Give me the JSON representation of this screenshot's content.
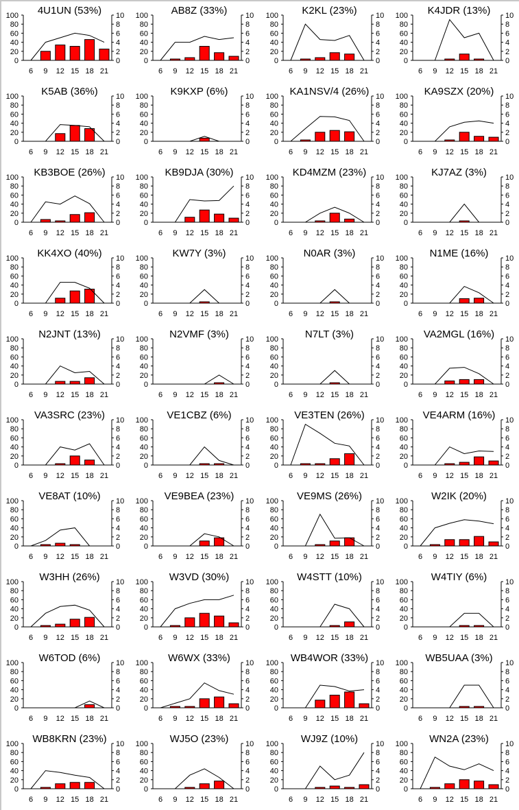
{
  "shared": {
    "x": [
      6,
      9,
      12,
      15,
      18,
      21
    ],
    "left_ticks": [
      0,
      20,
      40,
      60,
      80,
      100
    ],
    "right_ticks": [
      0,
      2,
      4,
      6,
      8,
      10
    ],
    "left_ylim": [
      0,
      100
    ],
    "right_ylim": [
      0,
      10
    ],
    "bar_color": "#ff0000",
    "line_color": "#000000"
  },
  "chart_data": [
    {
      "type": "bar+line",
      "title": "4U1UN (53%)",
      "line": [
        0,
        40,
        50,
        60,
        55,
        40
      ],
      "bars": [
        0,
        20,
        34,
        31,
        46,
        25
      ]
    },
    {
      "type": "bar+line",
      "title": "AB8Z (33%)",
      "line": [
        0,
        40,
        40,
        53,
        46,
        50
      ],
      "bars": [
        0,
        3,
        6,
        31,
        17,
        9
      ]
    },
    {
      "type": "bar+line",
      "title": "K2KL (23%)",
      "line": [
        0,
        80,
        46,
        44,
        55,
        0
      ],
      "bars": [
        0,
        3,
        6,
        17,
        14,
        0
      ]
    },
    {
      "type": "bar+line",
      "title": "K4JDR (13%)",
      "line": [
        0,
        0,
        90,
        50,
        60,
        0
      ],
      "bars": [
        0,
        0,
        3,
        14,
        3,
        0
      ]
    },
    {
      "type": "bar+line",
      "title": "K5AB (36%)",
      "line": [
        0,
        0,
        37,
        35,
        32,
        0
      ],
      "bars": [
        0,
        0,
        17,
        35,
        28,
        0
      ]
    },
    {
      "type": "bar+line",
      "title": "K9KXP (6%)",
      "line": [
        0,
        0,
        0,
        11,
        0,
        0
      ],
      "bars": [
        0,
        0,
        0,
        7,
        0,
        0
      ]
    },
    {
      "type": "bar+line",
      "title": "KA1NSV/4 (26%)",
      "line": [
        0,
        28,
        55,
        54,
        46,
        0
      ],
      "bars": [
        0,
        3,
        20,
        24,
        21,
        0
      ]
    },
    {
      "type": "bar+line",
      "title": "KA9SZX (20%)",
      "line": [
        0,
        0,
        32,
        42,
        45,
        40
      ],
      "bars": [
        0,
        0,
        3,
        20,
        11,
        9
      ]
    },
    {
      "type": "bar+line",
      "title": "KB3BOE (26%)",
      "line": [
        0,
        45,
        40,
        58,
        41,
        0
      ],
      "bars": [
        0,
        6,
        3,
        17,
        21,
        0
      ]
    },
    {
      "type": "bar+line",
      "title": "KB9DJA (30%)",
      "line": [
        0,
        0,
        50,
        47,
        48,
        80
      ],
      "bars": [
        0,
        0,
        11,
        27,
        18,
        9
      ]
    },
    {
      "type": "bar+line",
      "title": "KD4MZM (23%)",
      "line": [
        0,
        0,
        20,
        33,
        20,
        0
      ],
      "bars": [
        0,
        0,
        3,
        20,
        7,
        0
      ]
    },
    {
      "type": "bar+line",
      "title": "KJ7AZ (3%)",
      "line": [
        0,
        0,
        0,
        40,
        0,
        0
      ],
      "bars": [
        0,
        0,
        0,
        3,
        0,
        0
      ]
    },
    {
      "type": "bar+line",
      "title": "KK4XO (40%)",
      "line": [
        0,
        0,
        46,
        46,
        33,
        0
      ],
      "bars": [
        0,
        0,
        11,
        27,
        31,
        0
      ]
    },
    {
      "type": "bar+line",
      "title": "KW7Y (3%)",
      "line": [
        0,
        0,
        0,
        30,
        0,
        0
      ],
      "bars": [
        0,
        0,
        0,
        3,
        0,
        0
      ]
    },
    {
      "type": "bar+line",
      "title": "N0AR (3%)",
      "line": [
        0,
        0,
        0,
        30,
        0,
        0
      ],
      "bars": [
        0,
        0,
        0,
        3,
        0,
        0
      ]
    },
    {
      "type": "bar+line",
      "title": "N1ME (16%)",
      "line": [
        0,
        0,
        0,
        37,
        23,
        0
      ],
      "bars": [
        0,
        0,
        0,
        10,
        11,
        0
      ]
    },
    {
      "type": "bar+line",
      "title": "N2JNT (13%)",
      "line": [
        0,
        0,
        40,
        25,
        28,
        0
      ],
      "bars": [
        0,
        0,
        6,
        6,
        14,
        0
      ]
    },
    {
      "type": "bar+line",
      "title": "N2VMF (3%)",
      "line": [
        0,
        0,
        0,
        0,
        20,
        0
      ],
      "bars": [
        0,
        0,
        0,
        0,
        3,
        0
      ]
    },
    {
      "type": "bar+line",
      "title": "N7LT (3%)",
      "line": [
        0,
        0,
        0,
        30,
        0,
        0
      ],
      "bars": [
        0,
        0,
        0,
        3,
        0,
        0
      ]
    },
    {
      "type": "bar+line",
      "title": "VA2MGL (16%)",
      "line": [
        0,
        0,
        35,
        37,
        23,
        0
      ],
      "bars": [
        0,
        0,
        7,
        10,
        10,
        0
      ]
    },
    {
      "type": "bar+line",
      "title": "VA3SRC (23%)",
      "line": [
        0,
        0,
        40,
        33,
        47,
        0
      ],
      "bars": [
        0,
        0,
        3,
        20,
        11,
        0
      ]
    },
    {
      "type": "bar+line",
      "title": "VE1CBZ (6%)",
      "line": [
        0,
        0,
        0,
        40,
        10,
        0
      ],
      "bars": [
        0,
        0,
        0,
        3,
        3,
        0
      ]
    },
    {
      "type": "bar+line",
      "title": "VE3TEN (26%)",
      "line": [
        0,
        90,
        70,
        48,
        42,
        0
      ],
      "bars": [
        0,
        3,
        3,
        14,
        25,
        0
      ]
    },
    {
      "type": "bar+line",
      "title": "VE4ARM (16%)",
      "line": [
        0,
        0,
        40,
        25,
        31,
        30
      ],
      "bars": [
        0,
        0,
        3,
        6,
        18,
        9
      ]
    },
    {
      "type": "bar+line",
      "title": "VE8AT (10%)",
      "line": [
        0,
        12,
        35,
        40,
        0,
        0
      ],
      "bars": [
        0,
        3,
        6,
        3,
        0,
        0
      ]
    },
    {
      "type": "bar+line",
      "title": "VE9BEA (23%)",
      "line": [
        0,
        0,
        0,
        27,
        20,
        0
      ],
      "bars": [
        0,
        0,
        0,
        11,
        18,
        0
      ]
    },
    {
      "type": "bar+line",
      "title": "VE9MS (26%)",
      "line": [
        0,
        0,
        70,
        17,
        18,
        0
      ],
      "bars": [
        0,
        0,
        3,
        11,
        18,
        0
      ]
    },
    {
      "type": "bar+line",
      "title": "W2IK (20%)",
      "line": [
        0,
        40,
        50,
        58,
        55,
        49
      ],
      "bars": [
        0,
        3,
        14,
        14,
        21,
        9
      ]
    },
    {
      "type": "bar+line",
      "title": "W3HH (26%)",
      "line": [
        0,
        30,
        45,
        48,
        37,
        0
      ],
      "bars": [
        0,
        3,
        6,
        17,
        21,
        0
      ]
    },
    {
      "type": "bar+line",
      "title": "W3VD (30%)",
      "line": [
        0,
        40,
        52,
        60,
        60,
        70
      ],
      "bars": [
        0,
        3,
        20,
        30,
        24,
        9
      ]
    },
    {
      "type": "bar+line",
      "title": "W4STT (10%)",
      "line": [
        0,
        0,
        0,
        50,
        40,
        0
      ],
      "bars": [
        0,
        0,
        0,
        3,
        11,
        0
      ]
    },
    {
      "type": "bar+line",
      "title": "W4TIY (6%)",
      "line": [
        0,
        0,
        0,
        30,
        30,
        0
      ],
      "bars": [
        0,
        0,
        0,
        3,
        3,
        0
      ]
    },
    {
      "type": "bar+line",
      "title": "W6TOD (6%)",
      "line": [
        0,
        0,
        0,
        0,
        15,
        0
      ],
      "bars": [
        0,
        0,
        0,
        0,
        7,
        0
      ]
    },
    {
      "type": "bar+line",
      "title": "W6WX (33%)",
      "line": [
        0,
        10,
        20,
        55,
        38,
        30
      ],
      "bars": [
        0,
        3,
        3,
        20,
        24,
        9
      ]
    },
    {
      "type": "bar+line",
      "title": "WB4WOR (33%)",
      "line": [
        0,
        0,
        50,
        47,
        37,
        40
      ],
      "bars": [
        0,
        0,
        17,
        28,
        35,
        9
      ]
    },
    {
      "type": "bar+line",
      "title": "WB5UAA (3%)",
      "line": [
        0,
        0,
        0,
        50,
        50,
        0
      ],
      "bars": [
        0,
        0,
        0,
        3,
        3,
        0
      ]
    },
    {
      "type": "bar+line",
      "title": "WB8KRN (23%)",
      "line": [
        0,
        40,
        36,
        30,
        25,
        0
      ],
      "bars": [
        0,
        3,
        11,
        14,
        14,
        0
      ]
    },
    {
      "type": "bar+line",
      "title": "WJ5O (23%)",
      "line": [
        0,
        0,
        30,
        44,
        25,
        0
      ],
      "bars": [
        0,
        0,
        3,
        11,
        17,
        0
      ]
    },
    {
      "type": "bar+line",
      "title": "WJ9Z (10%)",
      "line": [
        0,
        0,
        50,
        20,
        30,
        80
      ],
      "bars": [
        0,
        0,
        3,
        6,
        3,
        9
      ]
    },
    {
      "type": "bar+line",
      "title": "WN2A (23%)",
      "line": [
        0,
        70,
        50,
        42,
        55,
        40
      ],
      "bars": [
        0,
        3,
        11,
        20,
        17,
        9
      ]
    }
  ]
}
